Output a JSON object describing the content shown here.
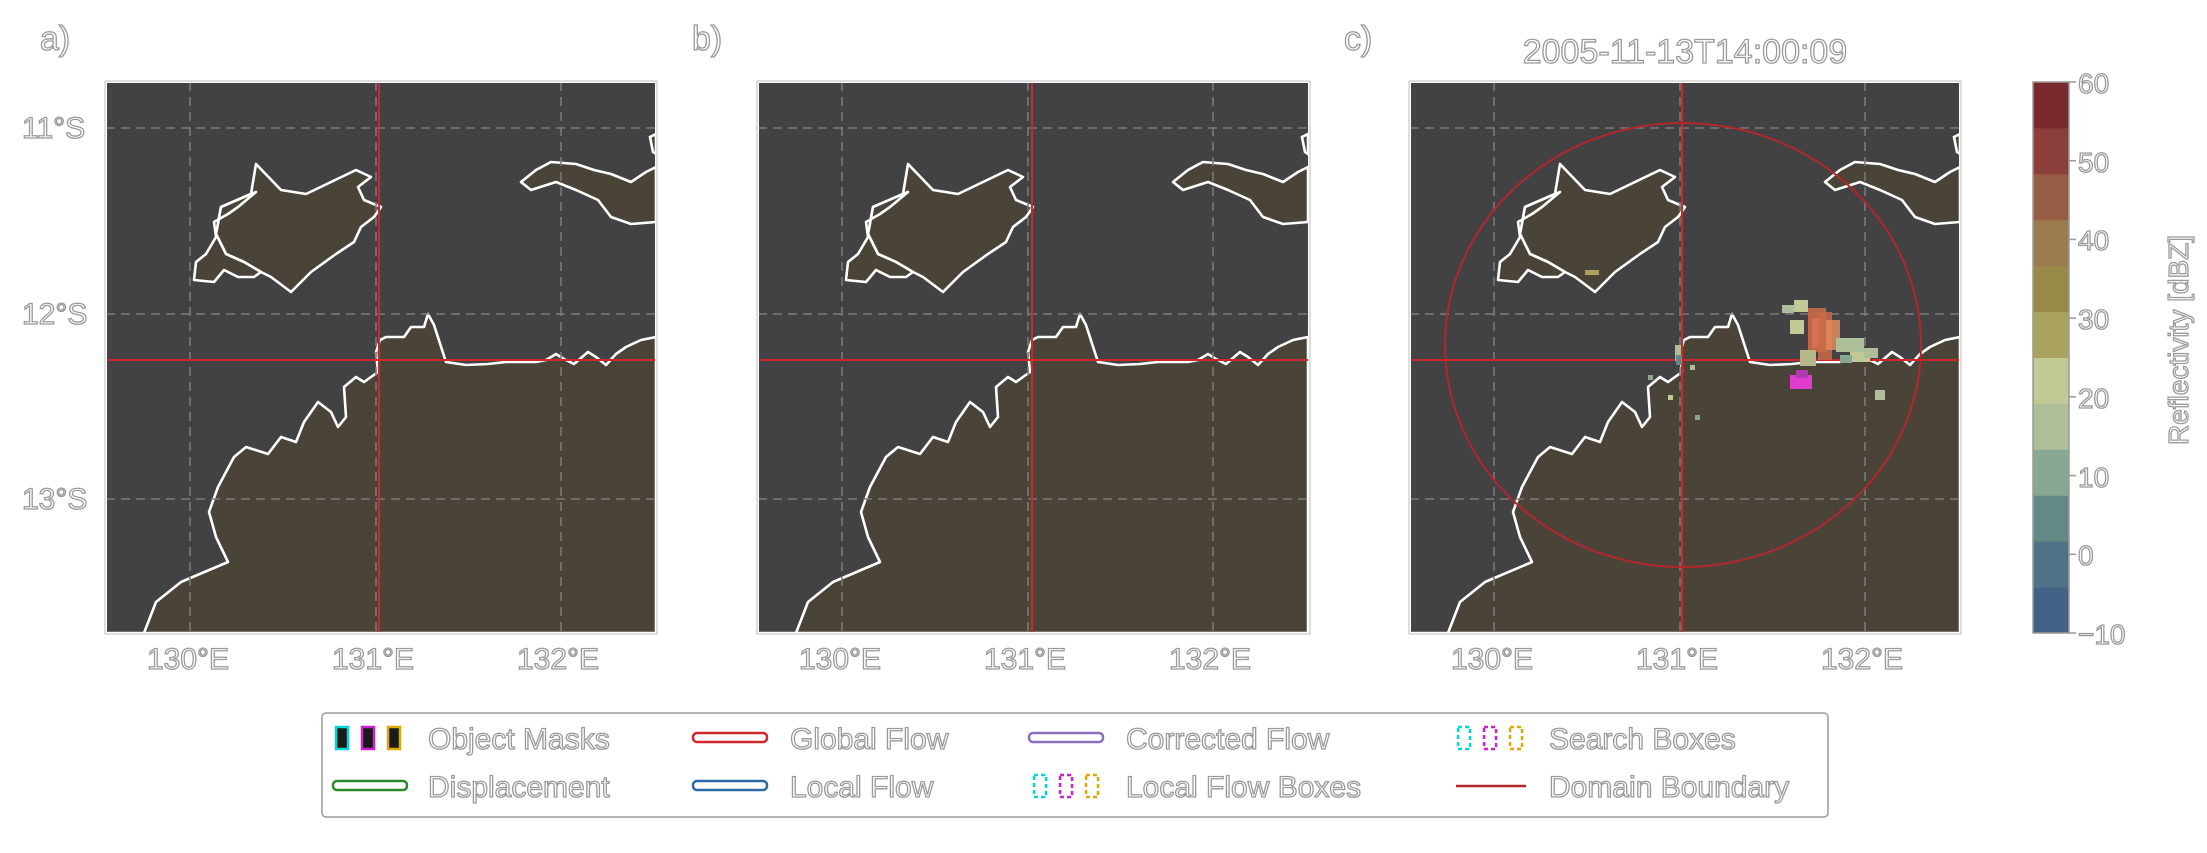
{
  "panels": [
    {
      "letter": "a)"
    },
    {
      "letter": "b)"
    },
    {
      "letter": "c)",
      "title": "2005-11-13T14:00:09"
    }
  ],
  "axes": {
    "x_ticks": [
      "130°E",
      "131°E",
      "132°E"
    ],
    "y_ticks": [
      "11°S",
      "12°S",
      "13°S"
    ]
  },
  "colorbar": {
    "label": "Reflectivity [dBZ]",
    "ticks": [
      "60",
      "50",
      "40",
      "30",
      "20",
      "10",
      "0",
      "−10"
    ],
    "range": [
      -10,
      60
    ],
    "colors": [
      "#3f6286",
      "#4e7387",
      "#648a88",
      "#88a893",
      "#aebe99",
      "#c1c995",
      "#aaa35f",
      "#9a8a48",
      "#9b7a4e",
      "#975c44",
      "#8c3e3b",
      "#7a2a2e"
    ]
  },
  "colors": {
    "background": "#ffffff",
    "ocean": "#424143",
    "land": "#4a4338",
    "coastline": "#ffffff",
    "gridline": "#7a7a7a",
    "global_flow": "#d0272a",
    "domain_boundary": "#b3272b"
  },
  "legend": {
    "items": [
      {
        "label": "Object Masks",
        "icon": "object-masks-icon"
      },
      {
        "label": "Global Flow",
        "icon": "global-flow-icon"
      },
      {
        "label": "Corrected Flow",
        "icon": "corrected-flow-icon"
      },
      {
        "label": "Search Boxes",
        "icon": "search-boxes-icon"
      },
      {
        "label": "Displacement",
        "icon": "displacement-icon"
      },
      {
        "label": "Local Flow",
        "icon": "local-flow-icon"
      },
      {
        "label": "Local Flow Boxes",
        "icon": "local-flow-boxes-icon"
      },
      {
        "label": "Domain Boundary",
        "icon": "domain-boundary-icon"
      }
    ]
  }
}
